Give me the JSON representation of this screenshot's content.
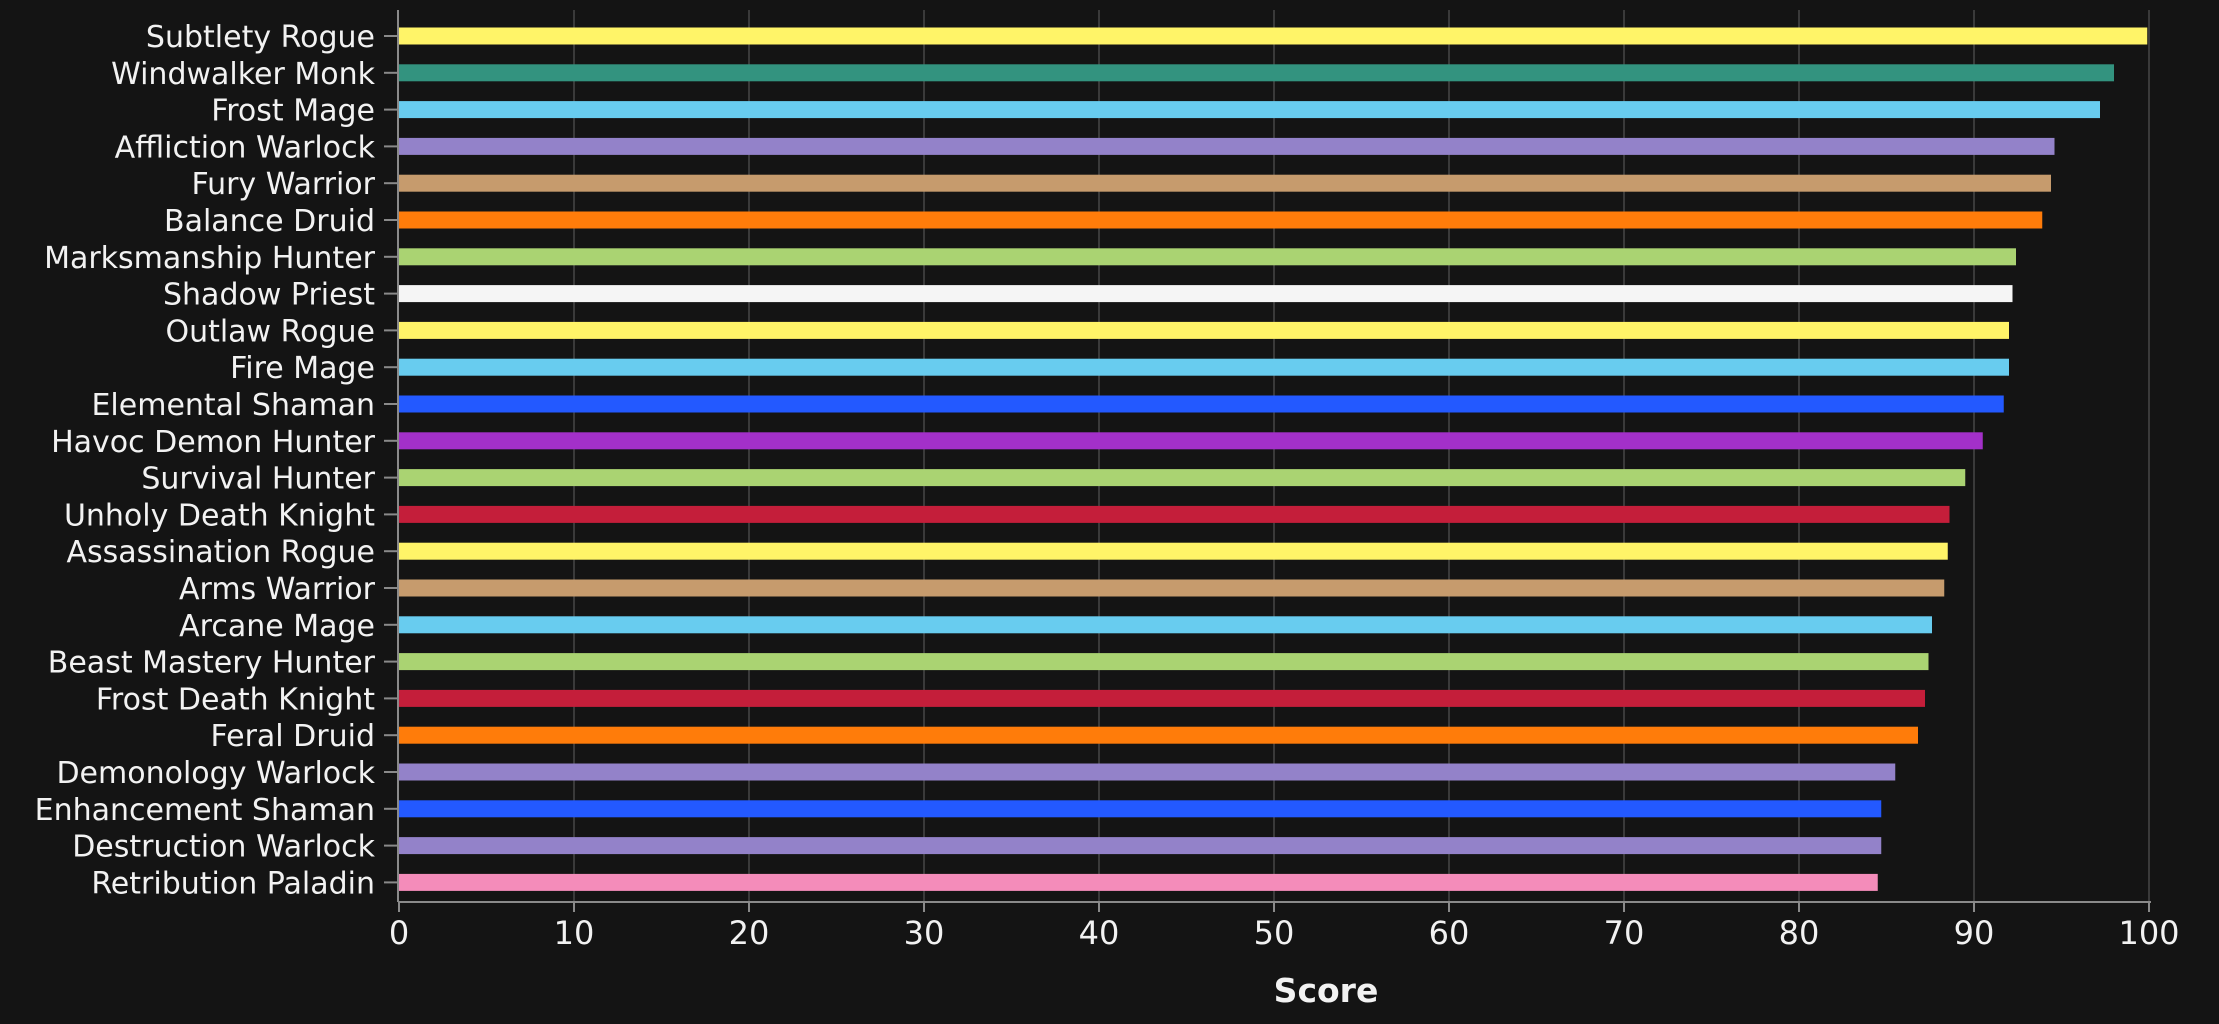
{
  "chart_data": {
    "type": "bar",
    "orientation": "horizontal",
    "title": "",
    "xlabel": "Score",
    "ylabel": "",
    "xlim": [
      0,
      100
    ],
    "xticks": [
      0,
      10,
      20,
      30,
      40,
      50,
      60,
      70,
      80,
      90,
      100
    ],
    "grid": true,
    "legend": "none",
    "categories": [
      "Subtlety Rogue",
      "Windwalker Monk",
      "Frost Mage",
      "Affliction Warlock",
      "Fury Warrior",
      "Balance Druid",
      "Marksmanship Hunter",
      "Shadow Priest",
      "Outlaw Rogue",
      "Fire Mage",
      "Elemental Shaman",
      "Havoc Demon Hunter",
      "Survival Hunter",
      "Unholy Death Knight",
      "Assassination Rogue",
      "Arms Warrior",
      "Arcane Mage",
      "Beast Mastery Hunter",
      "Frost Death Knight",
      "Feral Druid",
      "Demonology Warlock",
      "Enhancement Shaman",
      "Destruction Warlock",
      "Retribution Paladin"
    ],
    "values": [
      99.9,
      98.0,
      97.2,
      94.6,
      94.4,
      93.9,
      92.4,
      92.2,
      92.0,
      92.0,
      91.7,
      90.5,
      89.5,
      88.6,
      88.5,
      88.3,
      87.6,
      87.4,
      87.2,
      86.8,
      85.5,
      84.7,
      84.7,
      84.5
    ],
    "colors": [
      "#FFF468",
      "#33937F",
      "#68CCEF",
      "#9382C9",
      "#C69B6D",
      "#FF7C0A",
      "#AAD372",
      "#F5F5F5",
      "#FFF468",
      "#68CCEF",
      "#2359FF",
      "#A330C9",
      "#AAD372",
      "#C41E3A",
      "#FFF468",
      "#C69B6D",
      "#68CCEF",
      "#AAD372",
      "#C41E3A",
      "#FF7C0A",
      "#9382C9",
      "#2359FF",
      "#9382C9",
      "#F48CBA"
    ],
    "background": "#141414",
    "grid_color": "#3a3a3a"
  }
}
